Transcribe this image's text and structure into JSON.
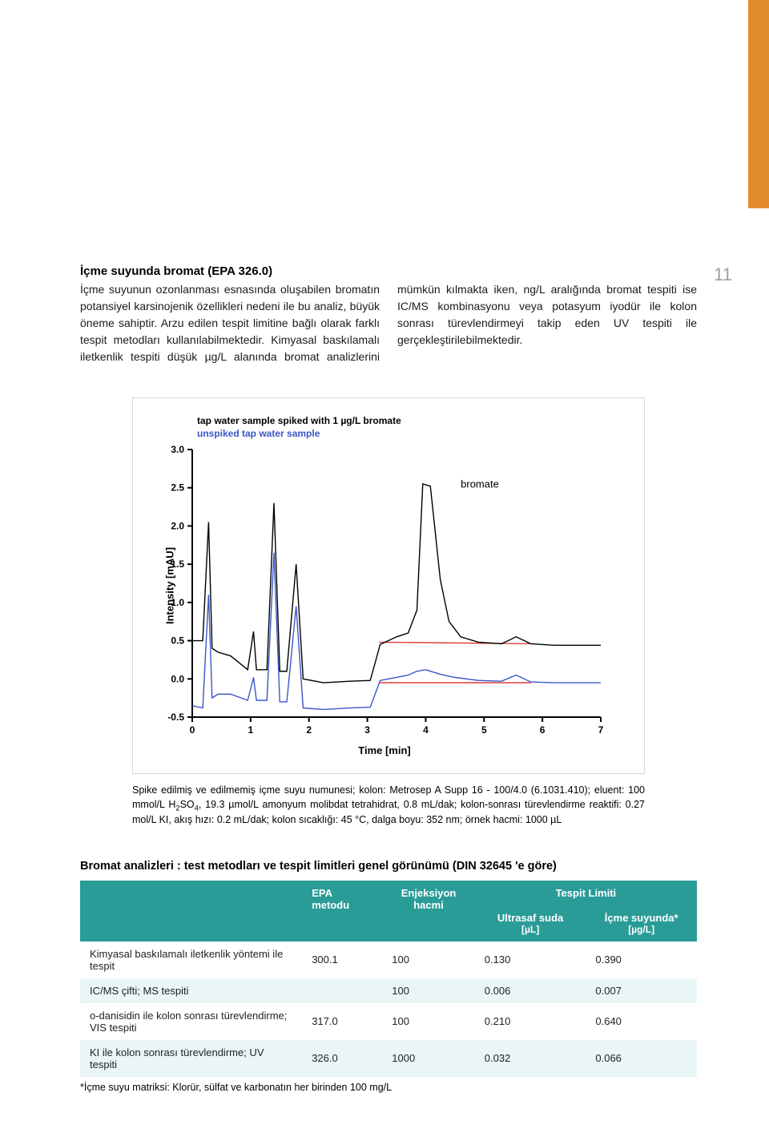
{
  "pageNumber": "11",
  "heading": "İçme suyunda bromat (EPA 326.0)",
  "paragraph": "İçme suyunun ozonlanması esnasında oluşabilen bromatın potansiyel karsinojenik özellikleri nedeni ile bu analiz, büyük öneme sahiptir. Arzu edilen tespit limitine bağlı olarak farklı tespit metodları kullanılabilmektedir. Kimyasal baskılamalı iletkenlik tespiti düşük µg/L alanında bromat analizlerini mümkün kılmakta iken, ng/L aralığında bromat tespiti ise IC/MS kombinasyonu veya potasyum iyodür ile kolon sonrası türevlendirmeyi takip eden UV tespiti ile gerçekleştirilebilmektedir.",
  "chart": {
    "type": "line",
    "legend": {
      "spiked": "tap water sample spiked with 1 µg/L bromate",
      "unspiked": "unspiked tap water sample",
      "color_spiked": "#000000",
      "color_unspiked": "#3a56c8"
    },
    "y_label": "Intensity [mAU]",
    "x_label": "Time [min]",
    "bromate_label": "bromate",
    "x_min": 0,
    "x_max": 7,
    "x_tick_step": 1,
    "y_min": -0.5,
    "y_max": 3.0,
    "y_tick_step": 0.5,
    "axis_color": "#000000",
    "font_size_ticks": 12,
    "font_size_labels": 13,
    "baseline_red_color": "#d92c2c",
    "series_spiked": {
      "color": "#000000",
      "line_width": 1.4,
      "points": [
        [
          0.0,
          0.5
        ],
        [
          0.18,
          0.5
        ],
        [
          0.28,
          2.05
        ],
        [
          0.34,
          0.4
        ],
        [
          0.44,
          0.35
        ],
        [
          0.66,
          0.3
        ],
        [
          0.95,
          0.12
        ],
        [
          1.05,
          0.62
        ],
        [
          1.1,
          0.12
        ],
        [
          1.28,
          0.12
        ],
        [
          1.4,
          2.3
        ],
        [
          1.5,
          0.1
        ],
        [
          1.62,
          0.1
        ],
        [
          1.78,
          1.5
        ],
        [
          1.9,
          0.0
        ],
        [
          2.25,
          -0.05
        ],
        [
          2.7,
          -0.03
        ],
        [
          3.05,
          -0.02
        ],
        [
          3.22,
          0.45
        ],
        [
          3.5,
          0.55
        ],
        [
          3.7,
          0.6
        ],
        [
          3.85,
          0.9
        ],
        [
          3.95,
          2.55
        ],
        [
          4.08,
          2.52
        ],
        [
          4.25,
          1.3
        ],
        [
          4.4,
          0.75
        ],
        [
          4.6,
          0.55
        ],
        [
          4.9,
          0.48
        ],
        [
          5.3,
          0.46
        ],
        [
          5.55,
          0.55
        ],
        [
          5.8,
          0.46
        ],
        [
          6.2,
          0.44
        ],
        [
          7.0,
          0.44
        ]
      ]
    },
    "series_unspiked": {
      "color": "#3a56c8",
      "line_width": 1.4,
      "points": [
        [
          0.0,
          -0.35
        ],
        [
          0.18,
          -0.38
        ],
        [
          0.28,
          1.1
        ],
        [
          0.34,
          -0.25
        ],
        [
          0.44,
          -0.2
        ],
        [
          0.66,
          -0.2
        ],
        [
          0.95,
          -0.28
        ],
        [
          1.05,
          0.02
        ],
        [
          1.1,
          -0.28
        ],
        [
          1.28,
          -0.28
        ],
        [
          1.4,
          1.65
        ],
        [
          1.5,
          -0.3
        ],
        [
          1.62,
          -0.3
        ],
        [
          1.78,
          0.95
        ],
        [
          1.9,
          -0.38
        ],
        [
          2.25,
          -0.4
        ],
        [
          2.7,
          -0.38
        ],
        [
          3.05,
          -0.37
        ],
        [
          3.22,
          -0.02
        ],
        [
          3.5,
          0.02
        ],
        [
          3.7,
          0.05
        ],
        [
          3.85,
          0.1
        ],
        [
          4.0,
          0.12
        ],
        [
          4.25,
          0.06
        ],
        [
          4.5,
          0.02
        ],
        [
          4.9,
          -0.02
        ],
        [
          5.3,
          -0.03
        ],
        [
          5.55,
          0.05
        ],
        [
          5.8,
          -0.04
        ],
        [
          6.2,
          -0.05
        ],
        [
          7.0,
          -0.05
        ]
      ]
    },
    "baseline_spiked": {
      "color": "#d92c2c",
      "points": [
        [
          3.2,
          0.48
        ],
        [
          5.8,
          0.46
        ]
      ]
    },
    "baseline_unspiked": {
      "color": "#d92c2c",
      "points": [
        [
          3.2,
          -0.05
        ],
        [
          5.8,
          -0.05
        ]
      ]
    }
  },
  "caption_before_sub": "Spike edilmiş ve edilmemiş içme suyu numunesi; kolon: Metrosep A Supp 16 - 100/4.0 (6.1031.410); eluent: 100 mmol/L H",
  "caption_sub": "2",
  "caption_after_sub": "SO",
  "caption_sub2": "4",
  "caption_rest": ", 19.3 µmol/L amonyum molibdat tetrahidrat, 0.8 mL/dak; kolon-sonrası türevlendirme reaktifi: 0.27 mol/L KI, akış hızı: 0.2 mL/dak; kolon sıcaklığı: 45 °C, dalga boyu: 352 nm; örnek hacmi: 1000 µL",
  "table": {
    "title": "Bromat analizleri : test metodları ve tespit limitleri genel görünümü (DIN 32645 'e göre)",
    "header_bg": "#2a9c98",
    "header_fg": "#ffffff",
    "odd_bg": "#ffffff",
    "even_bg": "#eaf6f6",
    "head": {
      "blank": "",
      "epa1": "EPA",
      "epa2": "metodu",
      "inj1": "Enjeksiyon",
      "inj2": "hacmi",
      "lim_top": "Tespit Limiti",
      "lim_a1": "Ultrasaf suda",
      "lim_a2": "[µL]",
      "lim_b1": "İçme suyunda*",
      "lim_b2": "[µg/L]"
    },
    "rows": [
      {
        "method": "Kimyasal baskılamalı iletkenlik yöntemi ile tespit",
        "epa": "300.1",
        "inj": "100",
        "a": "0.130",
        "b": "0.390"
      },
      {
        "method": "IC/MS çifti; MS tespiti",
        "epa": "",
        "inj": "100",
        "a": "0.006",
        "b": "0.007"
      },
      {
        "method": "o-danisidin ile kolon sonrası türevlendirme; VIS tespiti",
        "epa": "317.0",
        "inj": "100",
        "a": "0.210",
        "b": "0.640"
      },
      {
        "method": "KI ile kolon sonrası türevlendirme; UV tespiti",
        "epa": "326.0",
        "inj": "1000",
        "a": "0.032",
        "b": "0.066"
      }
    ]
  },
  "footnote": "*İçme suyu matriksi: Klorür, sülfat ve karbonatın her birinden 100 mg/L"
}
